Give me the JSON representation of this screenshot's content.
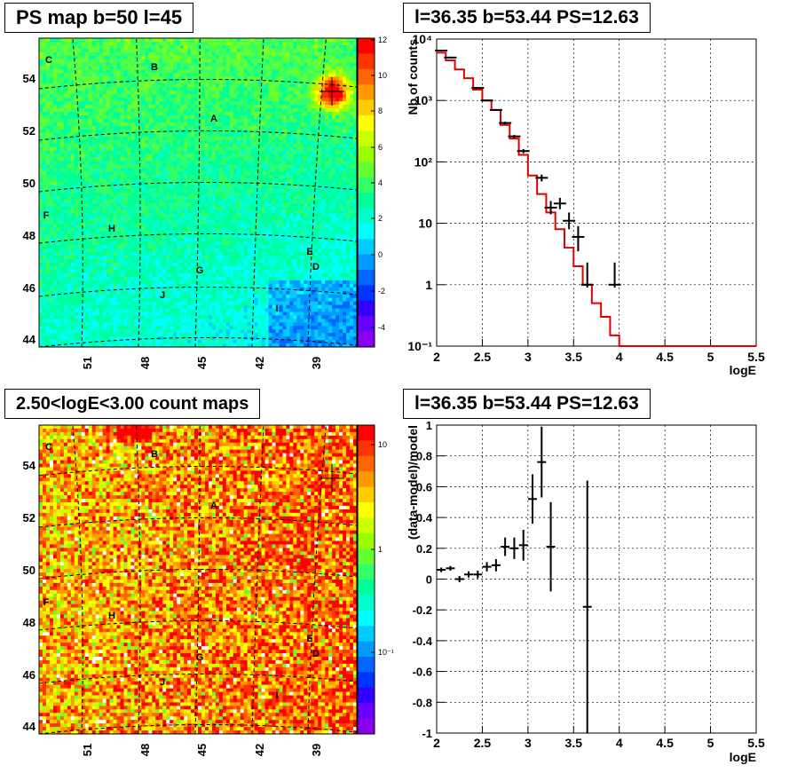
{
  "titles": {
    "ps_map": "PS map b=50 l=45",
    "spectrum": "l=36.35 b=53.44 PS=12.63",
    "count_map": "2.50<logE<3.00 count maps",
    "residual": "l=36.35 b=53.44 PS=12.63"
  },
  "chart_data": [
    {
      "type": "heatmap",
      "title": "PS map b=50 l=45",
      "x_ticks": [
        "51",
        "48",
        "45",
        "42",
        "39"
      ],
      "y_ticks": [
        "44",
        "46",
        "48",
        "50",
        "52",
        "54"
      ],
      "colorbar_ticks": [
        "12",
        "10",
        "8",
        "6",
        "4",
        "2",
        "0",
        "-2",
        "-4"
      ],
      "zlim": [
        -5,
        12
      ],
      "point_labels": [
        "A",
        "B",
        "C",
        "D",
        "E",
        "F",
        "G",
        "H",
        "I",
        "J"
      ],
      "grid": true
    },
    {
      "type": "line",
      "title": "l=36.35 b=53.44 PS=12.63",
      "xlabel": "logE",
      "ylabel": "Nb of counts",
      "xlim": [
        2,
        5.5
      ],
      "ylim": [
        0.1,
        10000
      ],
      "yscale": "log",
      "x_ticks": [
        "2",
        "2.5",
        "3",
        "3.5",
        "4",
        "4.5",
        "5",
        "5.5"
      ],
      "y_ticks": [
        "10⁻¹",
        "1",
        "10",
        "10²",
        "10³",
        "10⁴"
      ],
      "grid": true,
      "series": [
        {
          "role": "model",
          "color": "#e00000",
          "bin_edges": [
            2.0,
            2.1,
            2.2,
            2.3,
            2.4,
            2.5,
            2.6,
            2.7,
            2.8,
            2.9,
            3.0,
            3.1,
            3.2,
            3.3,
            3.4,
            3.5,
            3.6,
            3.7,
            3.8,
            3.9,
            4.0,
            5.5
          ],
          "values": [
            6000,
            4500,
            3200,
            2300,
            1500,
            1000,
            700,
            400,
            240,
            130,
            60,
            30,
            15,
            8,
            4,
            2,
            1,
            0.5,
            0.3,
            0.15,
            0.1
          ]
        },
        {
          "role": "data",
          "color": "#000000",
          "x": [
            2.05,
            2.15,
            2.45,
            2.55,
            2.65,
            2.75,
            2.85,
            2.95,
            3.15,
            3.25,
            3.35,
            3.45,
            3.55,
            3.65,
            3.95
          ],
          "y": [
            6500,
            5000,
            1600,
            1000,
            700,
            430,
            260,
            150,
            55,
            18,
            21,
            11,
            6,
            1,
            1
          ],
          "y_err_low": [
            6300,
            4850,
            1560,
            970,
            675,
            410,
            245,
            138,
            48,
            14,
            17,
            8,
            3.5,
            0.9,
            0.9
          ],
          "y_err_high": [
            6700,
            5150,
            1640,
            1030,
            725,
            450,
            275,
            162,
            62,
            23,
            26,
            15,
            9,
            2.3,
            2.3
          ]
        }
      ]
    },
    {
      "type": "heatmap",
      "title": "2.50<logE<3.00 count maps",
      "x_ticks": [
        "51",
        "48",
        "45",
        "42",
        "39"
      ],
      "y_ticks": [
        "44",
        "46",
        "48",
        "50",
        "52",
        "54"
      ],
      "colorbar_ticks": [
        "10",
        "1",
        "10⁻¹"
      ],
      "zscale": "log",
      "point_labels": [
        "A",
        "B",
        "C",
        "D",
        "E",
        "F",
        "G",
        "H",
        "I",
        "J"
      ],
      "grid": true
    },
    {
      "type": "scatter",
      "title": "l=36.35 b=53.44 PS=12.63",
      "xlabel": "logE",
      "ylabel": "(data-model)/model",
      "xlim": [
        2,
        5.5
      ],
      "ylim": [
        -1,
        1
      ],
      "x_ticks": [
        "2",
        "2.5",
        "3",
        "3.5",
        "4",
        "4.5",
        "5",
        "5.5"
      ],
      "y_ticks": [
        "-1",
        "-0.8",
        "-0.6",
        "-0.4",
        "-0.2",
        "0",
        "0.2",
        "0.4",
        "0.6",
        "0.8",
        "1"
      ],
      "grid": true,
      "series": [
        {
          "color": "#000000",
          "x": [
            2.05,
            2.15,
            2.25,
            2.35,
            2.45,
            2.55,
            2.65,
            2.75,
            2.85,
            2.95,
            3.05,
            3.15,
            3.25,
            3.65
          ],
          "y": [
            0.06,
            0.07,
            0.0,
            0.03,
            0.03,
            0.08,
            0.09,
            0.21,
            0.2,
            0.22,
            0.52,
            0.76,
            0.21,
            -0.18
          ],
          "y_err": [
            0.015,
            0.015,
            0.02,
            0.02,
            0.025,
            0.03,
            0.04,
            0.06,
            0.07,
            0.1,
            0.16,
            0.23,
            0.29,
            0.82
          ]
        }
      ]
    }
  ]
}
